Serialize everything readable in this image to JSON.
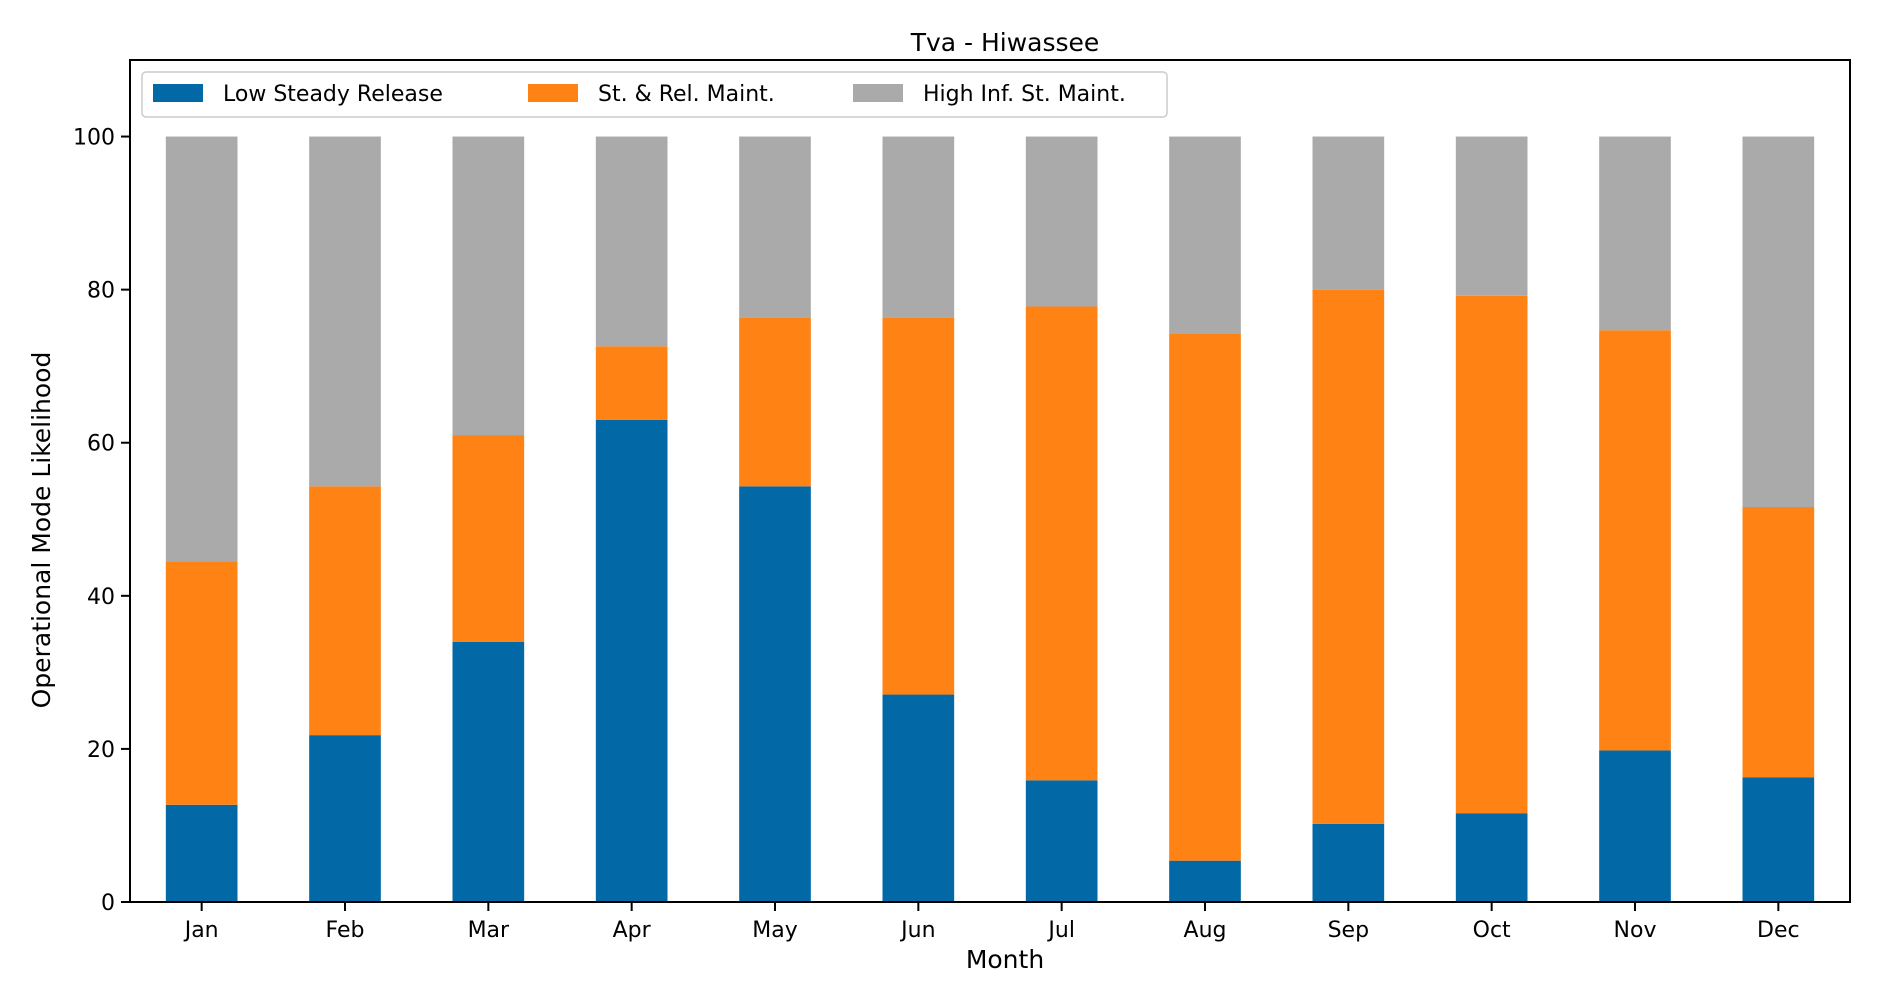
{
  "chart_data": {
    "type": "bar",
    "stacked": true,
    "title": "Tva - Hiwassee",
    "xlabel": "Month",
    "ylabel": "Operational Mode Likelihood",
    "ylim": [
      0,
      110
    ],
    "yticks": [
      0,
      20,
      40,
      60,
      80,
      100
    ],
    "grid": false,
    "legend_position": "top-left",
    "categories": [
      "Jan",
      "Feb",
      "Mar",
      "Apr",
      "May",
      "Jun",
      "Jul",
      "Aug",
      "Sep",
      "Oct",
      "Nov",
      "Dec"
    ],
    "series": [
      {
        "name": "Low Steady Release",
        "color": "#0369a6",
        "values": [
          12.7,
          21.8,
          34.0,
          63.0,
          54.3,
          27.1,
          15.9,
          5.4,
          10.2,
          11.6,
          19.8,
          16.3
        ]
      },
      {
        "name": "St. & Rel. Maint.",
        "color": "#ff8214",
        "values": [
          31.8,
          32.5,
          27.0,
          9.6,
          22.0,
          49.2,
          61.9,
          68.9,
          69.8,
          67.6,
          54.9,
          35.3
        ]
      },
      {
        "name": "High Inf. St. Maint.",
        "color": "#aaaaaa",
        "values": [
          55.5,
          45.7,
          39.0,
          27.4,
          23.7,
          23.7,
          22.2,
          25.7,
          20.0,
          20.8,
          25.3,
          48.4
        ]
      }
    ]
  }
}
